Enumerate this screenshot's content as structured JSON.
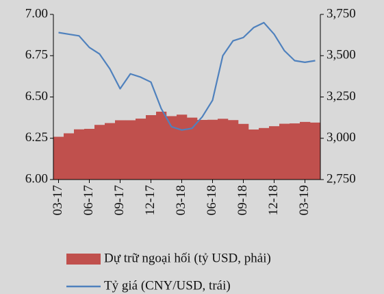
{
  "chart_data": {
    "type": "bar-line",
    "categories": [
      "03-17",
      null,
      null,
      "06-17",
      null,
      null,
      "09-17",
      null,
      null,
      "12-17",
      null,
      null,
      "03-18",
      null,
      null,
      "06-18",
      null,
      null,
      "09-18",
      null,
      null,
      "12-18",
      null,
      null,
      "03-19",
      null
    ],
    "series": [
      {
        "name": "Dự trữ ngoại hối (tỷ USD, phải)",
        "type": "bar",
        "axis": "y2",
        "color": "#c0504d",
        "values": [
          3009,
          3030,
          3054,
          3057,
          3081,
          3092,
          3109,
          3109,
          3119,
          3140,
          3161,
          3134,
          3143,
          3125,
          3111,
          3112,
          3118,
          3110,
          3087,
          3053,
          3062,
          3073,
          3088,
          3090,
          3099,
          3095
        ]
      },
      {
        "name": "Tỷ giá (CNY/USD, trái)",
        "type": "line",
        "color": "#4f81bd",
        "values": [
          6.89,
          6.88,
          6.87,
          6.8,
          6.76,
          6.67,
          6.55,
          6.64,
          6.62,
          6.59,
          6.43,
          6.32,
          6.3,
          6.31,
          6.38,
          6.48,
          6.75,
          6.84,
          6.86,
          6.92,
          6.95,
          6.88,
          6.78,
          6.72,
          6.71,
          6.72
        ]
      }
    ],
    "ylim": [
      6,
      7
    ],
    "yticks": [
      {
        "value": 6,
        "label": "6.00"
      },
      {
        "value": 6.25,
        "label": "6.25"
      },
      {
        "value": 6.5,
        "label": "6.50"
      },
      {
        "value": 6.75,
        "label": "6.75"
      },
      {
        "value": 7,
        "label": "7.00"
      }
    ],
    "y2lim": [
      2750,
      3750
    ],
    "y2ticks": [
      {
        "value": 2750,
        "label": "2,750"
      },
      {
        "value": 3000,
        "label": "3,000"
      },
      {
        "value": 3250,
        "label": "3,250"
      },
      {
        "value": 3500,
        "label": "3,500"
      },
      {
        "value": 3750,
        "label": "3,750"
      }
    ]
  }
}
